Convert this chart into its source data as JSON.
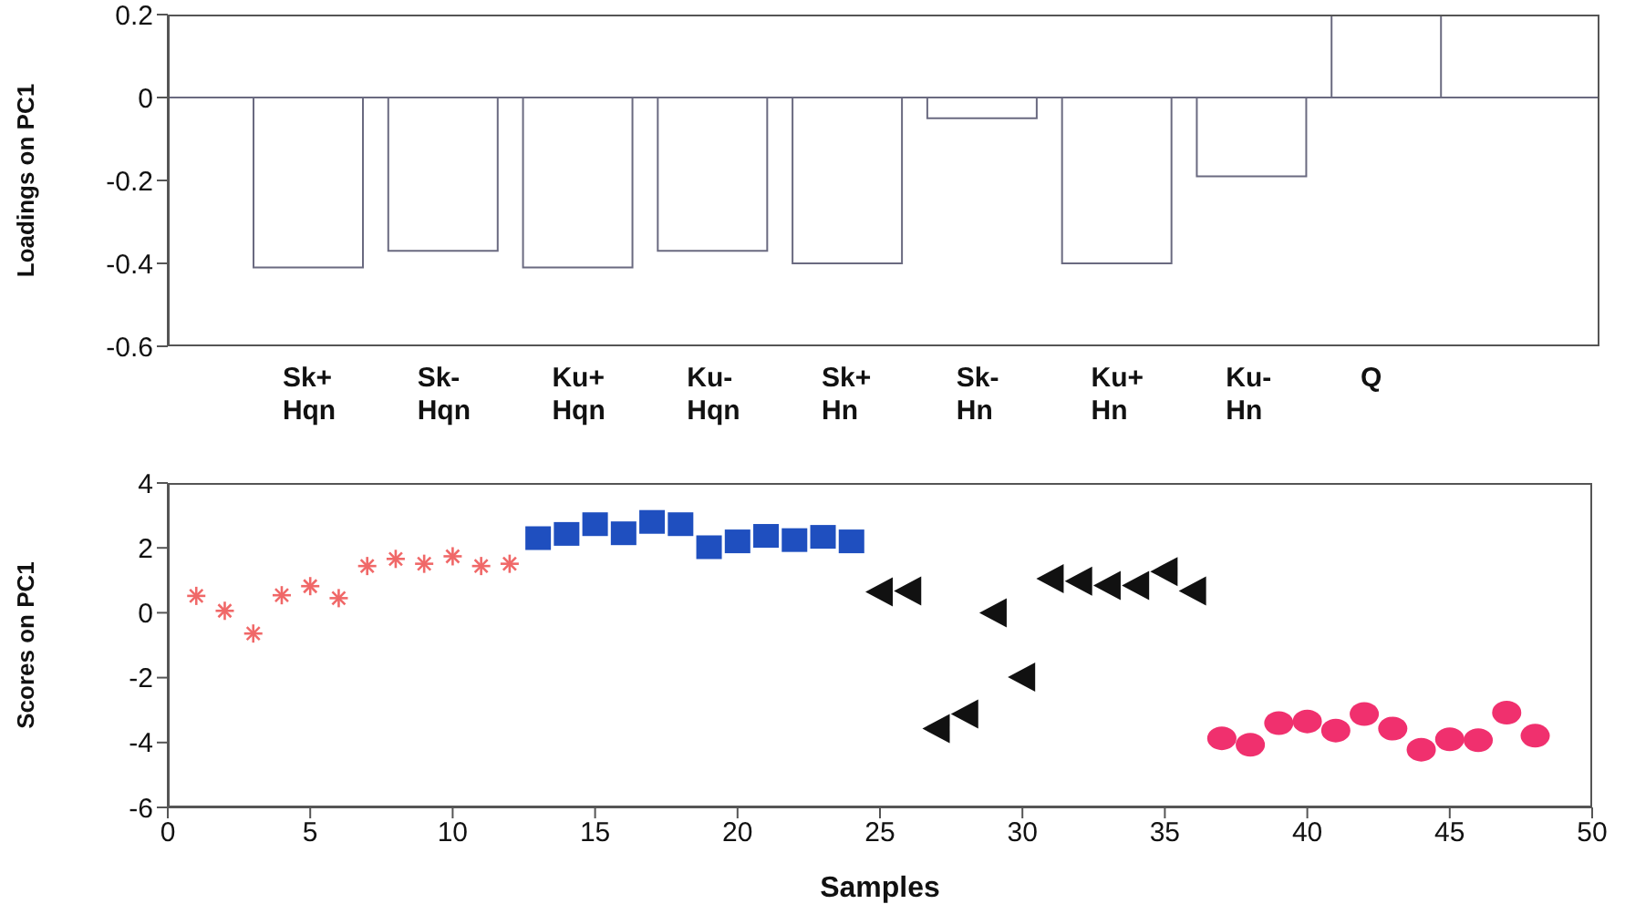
{
  "chart_data": [
    {
      "type": "bar",
      "ylabel": "Loadings on PC1",
      "categories": [
        "Sk+ Hqn",
        "Sk- Hqn",
        "Ku+ Hqn",
        "Ku- Hqn",
        "Sk+ Hn",
        "Sk- Hn",
        "Ku+ Hn",
        "Ku- Hn",
        "Q"
      ],
      "values": [
        -0.41,
        -0.37,
        -0.41,
        -0.37,
        -0.4,
        -0.05,
        -0.4,
        -0.19,
        0.2
      ],
      "color": "#ffffff",
      "ylim": [
        -0.6,
        0.2
      ],
      "yticks": [
        -0.6,
        -0.4,
        -0.2,
        0,
        0.2
      ],
      "ref_lines": [
        {
          "axis": "y",
          "value": 0,
          "color": "#6a6a80"
        }
      ]
    },
    {
      "type": "scatter",
      "xlabel": "Samples",
      "ylabel": "Scores on PC1",
      "xlim": [
        0,
        50
      ],
      "xticks": [
        0,
        5,
        10,
        15,
        20,
        25,
        30,
        35,
        40,
        45,
        50
      ],
      "ylim": [
        -6,
        4
      ],
      "yticks": [
        -6,
        -4,
        -2,
        0,
        2,
        4
      ],
      "series": [
        {
          "color": "#f06868",
          "marker": "cross",
          "x": [
            1,
            2,
            3,
            4,
            5,
            6,
            7,
            8,
            9,
            10,
            11,
            12
          ],
          "values": [
            0.52,
            0.06,
            -0.64,
            0.54,
            0.82,
            0.45,
            1.44,
            1.66,
            1.51,
            1.74,
            1.44,
            1.51
          ]
        },
        {
          "color": "#1f4fbf",
          "marker": "square",
          "x": [
            13,
            14,
            15,
            16,
            17,
            18,
            19,
            20,
            21,
            22,
            23,
            24
          ],
          "values": [
            2.3,
            2.43,
            2.73,
            2.45,
            2.8,
            2.73,
            2.02,
            2.2,
            2.37,
            2.24,
            2.34,
            2.2
          ]
        },
        {
          "color": "#111111",
          "marker": "triangle",
          "x": [
            25,
            26,
            27,
            28,
            29,
            30,
            31,
            32,
            33,
            34,
            35,
            36
          ],
          "values": [
            0.64,
            0.67,
            -3.57,
            -3.12,
            0,
            -1.98,
            1.05,
            0.97,
            0.84,
            0.84,
            1.27,
            0.67
          ]
        },
        {
          "color": "#f0306e",
          "marker": "circle",
          "x": [
            37,
            38,
            39,
            40,
            41,
            42,
            43,
            44,
            45,
            46,
            47,
            48
          ],
          "values": [
            -3.87,
            -4.07,
            -3.4,
            -3.35,
            -3.63,
            -3.12,
            -3.57,
            -4.22,
            -3.9,
            -3.93,
            -3.08,
            -3.79
          ]
        }
      ]
    }
  ]
}
